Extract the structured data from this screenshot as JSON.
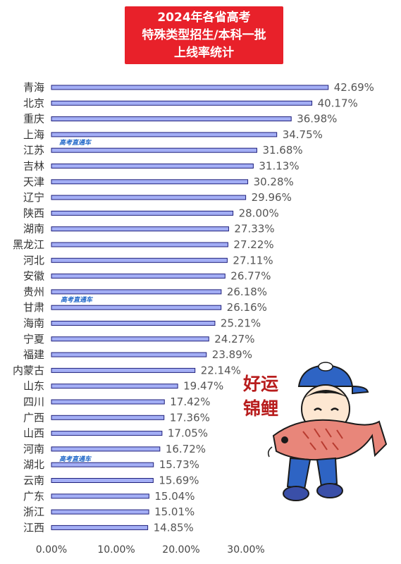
{
  "title": {
    "line1": "2024年各省高考",
    "line2": "特殊类型招生/本科一批",
    "line3": "上线率统计"
  },
  "watermark": "高考直通车",
  "sticker": {
    "text_line1": "好运",
    "text_line2": "锦鲤"
  },
  "colors": {
    "title_bg": "#e8212a",
    "bar_fill": "#a3aef5",
    "bar_stroke": "#1f1f7a"
  },
  "chart_data": {
    "type": "bar",
    "orientation": "horizontal",
    "categories": [
      "青海",
      "北京",
      "重庆",
      "上海",
      "江苏",
      "吉林",
      "天津",
      "辽宁",
      "陕西",
      "湖南",
      "黑龙江",
      "河北",
      "安徽",
      "贵州",
      "甘肃",
      "海南",
      "宁夏",
      "福建",
      "内蒙古",
      "山东",
      "四川",
      "广西",
      "山西",
      "河南",
      "湖北",
      "云南",
      "广东",
      "浙江",
      "江西"
    ],
    "values": [
      42.69,
      40.17,
      36.98,
      34.75,
      31.68,
      31.13,
      30.28,
      29.96,
      28.0,
      27.33,
      27.22,
      27.11,
      26.77,
      26.18,
      26.16,
      25.21,
      24.27,
      23.89,
      22.14,
      19.47,
      17.42,
      17.36,
      17.05,
      16.72,
      15.73,
      15.69,
      15.04,
      15.01,
      14.85
    ],
    "value_labels": [
      "42.69%",
      "40.17%",
      "36.98%",
      "34.75%",
      "31.68%",
      "31.13%",
      "30.28%",
      "29.96%",
      "28.00%",
      "27.33%",
      "27.22%",
      "27.11%",
      "26.77%",
      "26.18%",
      "26.16%",
      "25.21%",
      "24.27%",
      "23.89%",
      "22.14%",
      "19.47%",
      "17.42%",
      "17.36%",
      "17.05%",
      "16.72%",
      "15.73%",
      "15.69%",
      "15.04%",
      "15.01%",
      "14.85%"
    ],
    "xlim": [
      0,
      45
    ],
    "x_ticks": [
      "0.00%",
      "10.00%",
      "20.00%",
      "30.00%"
    ],
    "grid": false,
    "legend": "none"
  }
}
